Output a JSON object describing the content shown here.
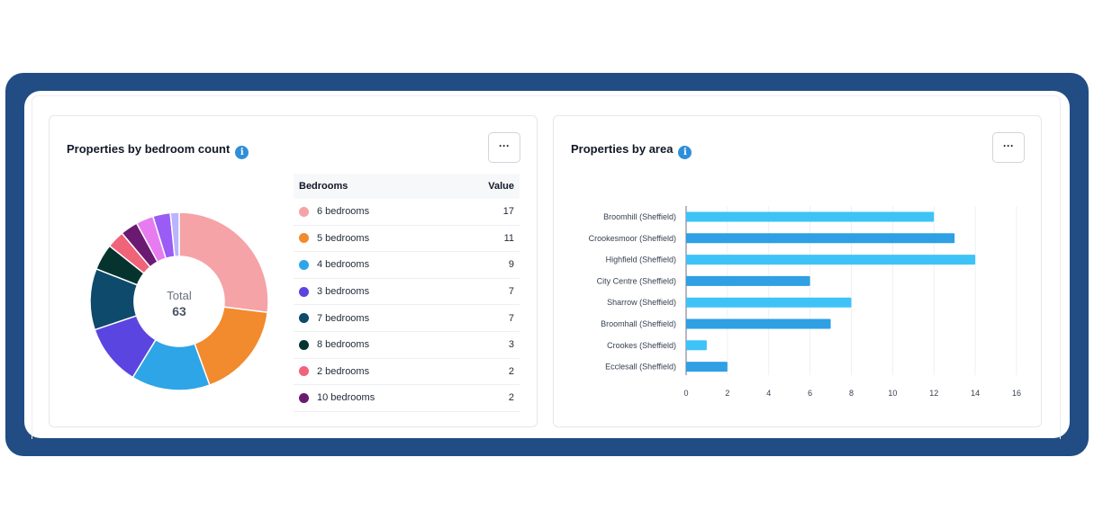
{
  "bedroom_card": {
    "title": "Properties by bedroom count",
    "info_icon": "i",
    "menu_label": "···",
    "donut": {
      "center_label": "Total",
      "center_value": "63"
    },
    "table": {
      "headers": [
        "Bedrooms",
        "Value"
      ],
      "rows": [
        {
          "label": "6 bedrooms",
          "value": "17",
          "color": "#f5a3a6"
        },
        {
          "label": "5 bedrooms",
          "value": "11",
          "color": "#f28a2e"
        },
        {
          "label": "4 bedrooms",
          "value": "9",
          "color": "#2ea5e6"
        },
        {
          "label": "3 bedrooms",
          "value": "7",
          "color": "#5b45e0"
        },
        {
          "label": "7 bedrooms",
          "value": "7",
          "color": "#0e4a6b"
        },
        {
          "label": "8 bedrooms",
          "value": "3",
          "color": "#06332e"
        },
        {
          "label": "2 bedrooms",
          "value": "2",
          "color": "#f0647a"
        },
        {
          "label": "10 bedrooms",
          "value": "2",
          "color": "#6b1a72"
        }
      ]
    }
  },
  "area_card": {
    "title": "Properties by area",
    "info_icon": "i",
    "menu_label": "···"
  },
  "chart_data": [
    {
      "type": "pie",
      "title": "Properties by bedroom count",
      "center_label": "Total",
      "total": 63,
      "slices": [
        {
          "label": "6 bedrooms",
          "value": 17,
          "color": "#f5a3a6"
        },
        {
          "label": "5 bedrooms",
          "value": 11,
          "color": "#f28a2e"
        },
        {
          "label": "4 bedrooms",
          "value": 9,
          "color": "#2ea5e6"
        },
        {
          "label": "3 bedrooms",
          "value": 7,
          "color": "#5b45e0"
        },
        {
          "label": "7 bedrooms",
          "value": 7,
          "color": "#0e4a6b"
        },
        {
          "label": "8 bedrooms",
          "value": 3,
          "color": "#06332e"
        },
        {
          "label": "2 bedrooms",
          "value": 2,
          "color": "#f0647a"
        },
        {
          "label": "10 bedrooms",
          "value": 2,
          "color": "#6b1a72"
        },
        {
          "label": "",
          "value": 2,
          "color": "#e77cf0"
        },
        {
          "label": "",
          "value": 2,
          "color": "#9a5cf5"
        },
        {
          "label": "",
          "value": 1,
          "color": "#b9b4fb"
        }
      ]
    },
    {
      "type": "bar",
      "orientation": "horizontal",
      "title": "Properties by area",
      "categories": [
        "Broomhill (Sheffield)",
        "Crookesmoor (Sheffield)",
        "Highfield (Sheffield)",
        "City Centre (Sheffield)",
        "Sharrow (Sheffield)",
        "Broomhall (Sheffield)",
        "Crookes (Sheffield)",
        "Ecclesall (Sheffield)"
      ],
      "values": [
        12,
        13,
        14,
        6,
        8,
        7,
        1,
        2
      ],
      "colors": [
        "#3ec3f7",
        "#2ea0e3"
      ],
      "xlim": [
        0,
        16
      ],
      "xticks": [
        0,
        2,
        4,
        6,
        8,
        10,
        12,
        14,
        16
      ],
      "grid": true
    }
  ]
}
